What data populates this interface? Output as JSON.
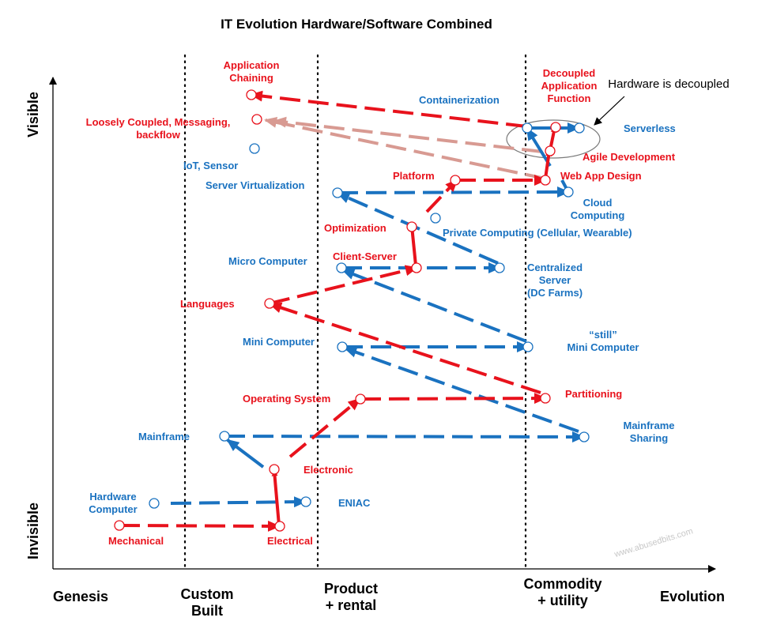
{
  "chart_data": {
    "type": "evolution-map",
    "title": "IT Evolution Hardware/Software Combined",
    "y_axis": {
      "top_label": "Visible",
      "bottom_label": "Invisible"
    },
    "x_axis": {
      "label": "Evolution"
    },
    "stages": [
      "Genesis",
      "Custom Built",
      "Product + rental",
      "Commodity + utility"
    ],
    "annotation": "Hardware is decoupled",
    "watermark": "www.abusedbits.com",
    "colors": {
      "hardware": "#1a72c0",
      "software": "#e8121c",
      "software_faded": "#d89a92",
      "axis": "#000000"
    },
    "labels": {
      "mechanical": "Mechanical",
      "electrical": "Electrical",
      "hardware_computer": "Hardware Computer",
      "eniac": "ENIAC",
      "electronic": "Electronic",
      "mainframe": "Mainframe",
      "mainframe_sharing": "Mainframe Sharing",
      "operating_system": "Operating System",
      "partitioning": "Partitioning",
      "mini_computer": "Mini Computer",
      "still_mini_computer": "“still” Mini Computer",
      "languages": "Languages",
      "micro_computer": "Micro Computer",
      "client_server": "Client-Server",
      "centralized_server": "Centralized Server (DC Farms)",
      "optimization": "Optimization",
      "private_computing": "Private Computing (Cellular, Wearable)",
      "server_virtualization": "Server Virtualization",
      "platform": "Platform",
      "cloud_computing": "Cloud Computing",
      "web_app_design": "Web App Design",
      "iot_sensor": "IoT, Sensor",
      "agile_development": "Agile Development",
      "loosely_coupled": "Loosely Coupled, Messaging, backflow",
      "containerization": "Containerization",
      "serverless": "Serverless",
      "application_chaining": "Application Chaining",
      "decoupled_function": "Decoupled Application Function"
    }
  }
}
